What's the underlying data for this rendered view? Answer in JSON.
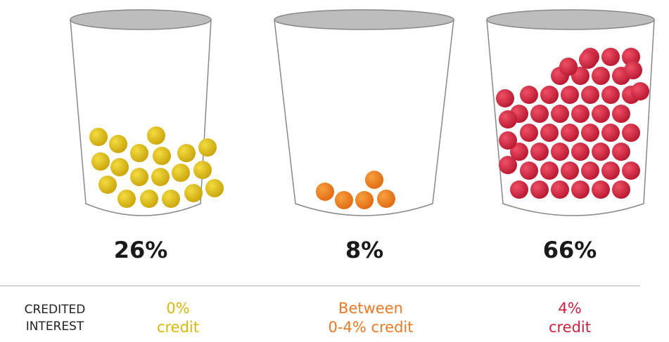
{
  "cups": [
    {
      "percent": "26%",
      "label_line1": "0%",
      "label_line2": "credit",
      "color": "#d9b80c"
    },
    {
      "percent": "8%",
      "label_line1": "Between",
      "label_line2": "0-4% credit",
      "color": "#ea7a25"
    },
    {
      "percent": "66%",
      "label_line1": "4%",
      "label_line2": "credit",
      "color": "#c8223f"
    }
  ],
  "row_header": {
    "line1": "CREDITED",
    "line2": "INTEREST"
  }
}
